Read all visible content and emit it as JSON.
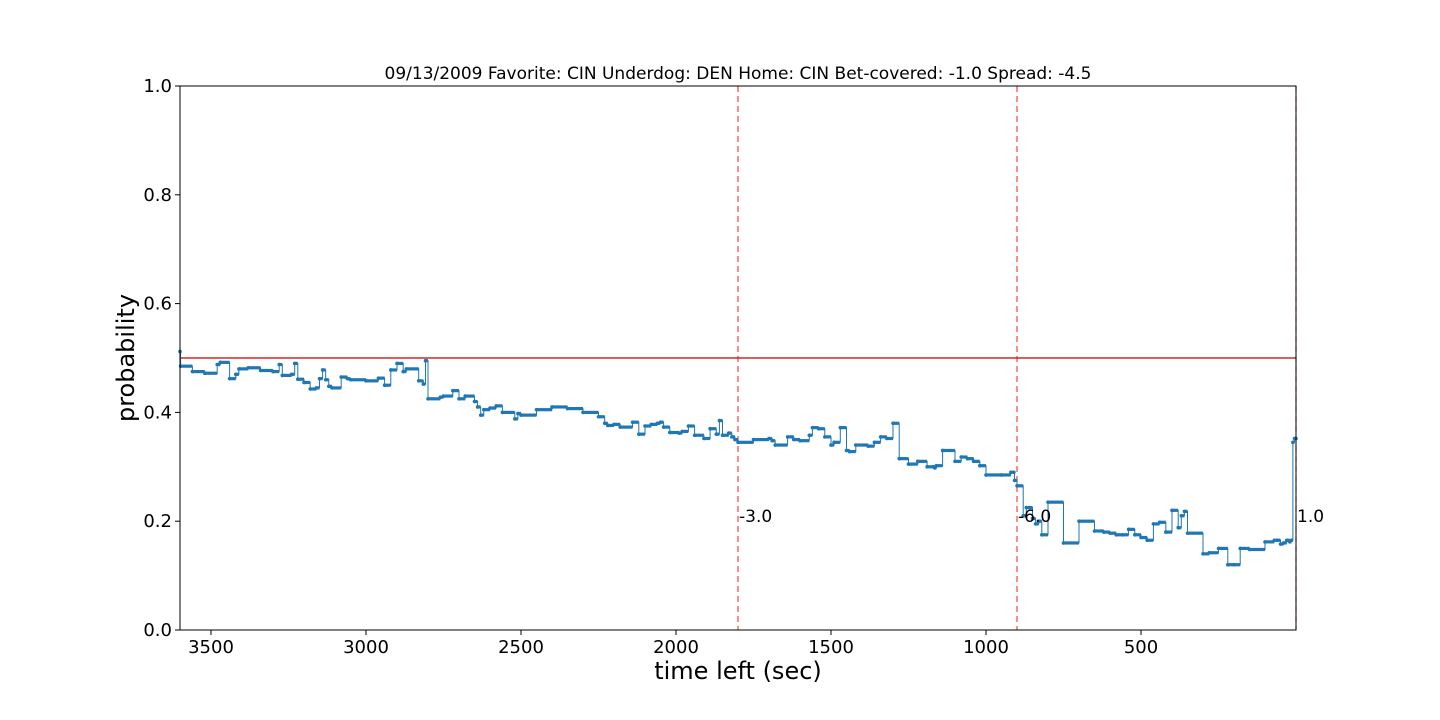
{
  "chart_data": {
    "type": "line",
    "title": "09/13/2009 Favorite: CIN Underdog: DEN Home: CIN Bet-covered: -1.0 Spread: -4.5",
    "xlabel": "time left (sec)",
    "ylabel": "probability",
    "xlim": [
      3600,
      0
    ],
    "ylim": [
      0.0,
      1.0
    ],
    "x_ticks": [
      3500,
      3000,
      2500,
      2000,
      1500,
      1000,
      500
    ],
    "x_tick_labels": [
      "3500",
      "3000",
      "2500",
      "2000",
      "1500",
      "1000",
      "500"
    ],
    "y_ticks": [
      0.0,
      0.2,
      0.4,
      0.6,
      0.8,
      1.0
    ],
    "y_tick_labels": [
      "0.0",
      "0.2",
      "0.4",
      "0.6",
      "0.8",
      "1.0"
    ],
    "grid": false,
    "reference_line": {
      "y": 0.5,
      "color": "#d62728"
    },
    "quarter_lines": [
      {
        "x": 1800,
        "label": "-3.0",
        "label_y": 0.21
      },
      {
        "x": 900,
        "label": "-6.0",
        "label_y": 0.21
      },
      {
        "x": 0,
        "label": "1.0",
        "label_y": 0.21
      }
    ],
    "quarter_line_color": "#ff0000",
    "series_color": "#1f77b4",
    "series": [
      {
        "x": [
          3600,
          3598,
          3560,
          3520,
          3480,
          3470,
          3440,
          3420,
          3410,
          3380,
          3340,
          3300,
          3280,
          3270,
          3240,
          3230,
          3220,
          3200,
          3180,
          3160,
          3150,
          3140,
          3130,
          3120,
          3110,
          3080,
          3060,
          3050,
          3000,
          2960,
          2940,
          2920,
          2900,
          2880,
          2870,
          2830,
          2815,
          2808,
          2800,
          2760,
          2750,
          2720,
          2700,
          2680,
          2650,
          2640,
          2630,
          2620,
          2600,
          2580,
          2560,
          2520,
          2510,
          2500,
          2450,
          2400,
          2350,
          2300,
          2250,
          2230,
          2220,
          2200,
          2180,
          2140,
          2120,
          2100,
          2080,
          2060,
          2050,
          2040,
          2020,
          1990,
          1980,
          1960,
          1940,
          1910,
          1890,
          1870,
          1860,
          1850,
          1830,
          1820,
          1810,
          1800,
          1750,
          1700,
          1690,
          1680,
          1640,
          1620,
          1600,
          1570,
          1560,
          1540,
          1520,
          1500,
          1490,
          1470,
          1450,
          1440,
          1420,
          1380,
          1360,
          1340,
          1320,
          1300,
          1280,
          1250,
          1220,
          1190,
          1170,
          1165,
          1160,
          1140,
          1100,
          1080,
          1060,
          1040,
          1020,
          1000,
          950,
          920,
          910,
          908,
          900,
          880,
          870,
          860,
          850,
          840,
          830,
          820,
          800,
          750,
          700,
          650,
          620,
          600,
          580,
          560,
          540,
          520,
          500,
          480,
          460,
          440,
          420,
          400,
          380,
          370,
          360,
          350,
          300,
          280,
          250,
          220,
          200,
          180,
          150,
          100,
          70,
          60,
          50,
          40,
          30,
          20,
          15,
          10,
          5,
          0
        ],
        "y": [
          0.512,
          0.485,
          0.475,
          0.472,
          0.488,
          0.492,
          0.462,
          0.47,
          0.48,
          0.482,
          0.477,
          0.475,
          0.488,
          0.468,
          0.47,
          0.49,
          0.461,
          0.455,
          0.443,
          0.445,
          0.462,
          0.478,
          0.46,
          0.448,
          0.445,
          0.465,
          0.462,
          0.46,
          0.458,
          0.463,
          0.45,
          0.478,
          0.49,
          0.475,
          0.48,
          0.458,
          0.452,
          0.495,
          0.425,
          0.428,
          0.43,
          0.44,
          0.425,
          0.43,
          0.42,
          0.41,
          0.395,
          0.405,
          0.408,
          0.412,
          0.4,
          0.388,
          0.398,
          0.395,
          0.405,
          0.41,
          0.407,
          0.4,
          0.392,
          0.38,
          0.376,
          0.378,
          0.373,
          0.382,
          0.36,
          0.375,
          0.378,
          0.38,
          0.382,
          0.373,
          0.363,
          0.362,
          0.365,
          0.375,
          0.358,
          0.352,
          0.37,
          0.36,
          0.385,
          0.358,
          0.362,
          0.355,
          0.35,
          0.345,
          0.35,
          0.352,
          0.348,
          0.34,
          0.355,
          0.35,
          0.348,
          0.358,
          0.372,
          0.37,
          0.355,
          0.34,
          0.345,
          0.372,
          0.33,
          0.328,
          0.34,
          0.338,
          0.345,
          0.355,
          0.352,
          0.38,
          0.315,
          0.305,
          0.31,
          0.3,
          0.3,
          0.298,
          0.302,
          0.33,
          0.31,
          0.318,
          0.315,
          0.31,
          0.302,
          0.285,
          0.285,
          0.29,
          0.29,
          0.275,
          0.265,
          0.21,
          0.225,
          0.225,
          0.205,
          0.195,
          0.2,
          0.175,
          0.235,
          0.16,
          0.2,
          0.182,
          0.18,
          0.178,
          0.175,
          0.175,
          0.185,
          0.175,
          0.17,
          0.165,
          0.195,
          0.198,
          0.18,
          0.22,
          0.188,
          0.21,
          0.218,
          0.178,
          0.14,
          0.142,
          0.15,
          0.12,
          0.12,
          0.15,
          0.148,
          0.162,
          0.165,
          0.165,
          0.158,
          0.16,
          0.165,
          0.162,
          0.165,
          0.345,
          0.352,
          0.352
        ]
      }
    ]
  }
}
